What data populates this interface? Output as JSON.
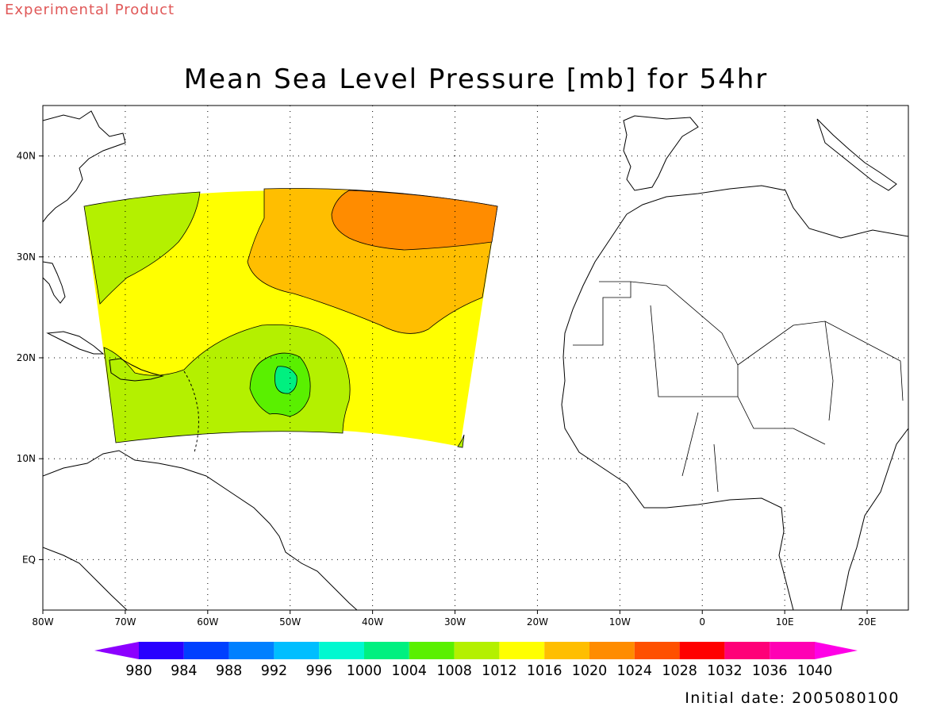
{
  "header": {
    "product_note": "Experimental Product",
    "title": "Mean Sea Level Pressure [mb] for 54hr",
    "initial_date": "Initial date: 2005080100"
  },
  "map": {
    "projection": "cylindrical",
    "lon_range": [
      -80,
      25
    ],
    "lat_range": [
      -5,
      45
    ],
    "x_ticks": [
      {
        "lon": -80,
        "label": "80W"
      },
      {
        "lon": -70,
        "label": "70W"
      },
      {
        "lon": -60,
        "label": "60W"
      },
      {
        "lon": -50,
        "label": "50W"
      },
      {
        "lon": -40,
        "label": "40W"
      },
      {
        "lon": -30,
        "label": "30W"
      },
      {
        "lon": -20,
        "label": "20W"
      },
      {
        "lon": -10,
        "label": "10W"
      },
      {
        "lon": 0,
        "label": "0"
      },
      {
        "lon": 10,
        "label": "10E"
      },
      {
        "lon": 20,
        "label": "20E"
      }
    ],
    "y_ticks": [
      {
        "lat": 40,
        "label": "40N"
      },
      {
        "lat": 30,
        "label": "30N"
      },
      {
        "lat": 20,
        "label": "20N"
      },
      {
        "lat": 10,
        "label": "10N"
      },
      {
        "lat": 0,
        "label": "EQ"
      }
    ],
    "grid": "dotted",
    "shaded_fields": [
      {
        "level": "1008-1012",
        "color": "#b4f000"
      },
      {
        "level": "1012-1016",
        "color": "#ffff00"
      },
      {
        "level": "1016-1020",
        "color": "#ffbe00"
      },
      {
        "level": "1020-1024",
        "color": "#ff8c00"
      },
      {
        "level": "1004-1008",
        "color": "#5af000"
      },
      {
        "level": "1000-1004",
        "color": "#00f080"
      }
    ]
  },
  "colorbar": {
    "levels": [
      {
        "label": "980",
        "color": "#7800ff"
      },
      {
        "label": "984",
        "color": "#2800ff"
      },
      {
        "label": "988",
        "color": "#0040ff"
      },
      {
        "label": "992",
        "color": "#0080ff"
      },
      {
        "label": "996",
        "color": "#00beff"
      },
      {
        "label": "1000",
        "color": "#00f8d0"
      },
      {
        "label": "1004",
        "color": "#00f080"
      },
      {
        "label": "1008",
        "color": "#5af000"
      },
      {
        "label": "1012",
        "color": "#b4f000"
      },
      {
        "label": "1016",
        "color": "#ffff00"
      },
      {
        "label": "1020",
        "color": "#ffbe00"
      },
      {
        "label": "1024",
        "color": "#ff8c00"
      },
      {
        "label": "1028",
        "color": "#ff5000"
      },
      {
        "label": "1032",
        "color": "#ff0000"
      },
      {
        "label": "1036",
        "color": "#ff0078"
      },
      {
        "label": "1040",
        "color": "#ff00b4"
      }
    ],
    "end_colors": {
      "low": "#8c00ff",
      "high": "#ff00e6"
    }
  }
}
